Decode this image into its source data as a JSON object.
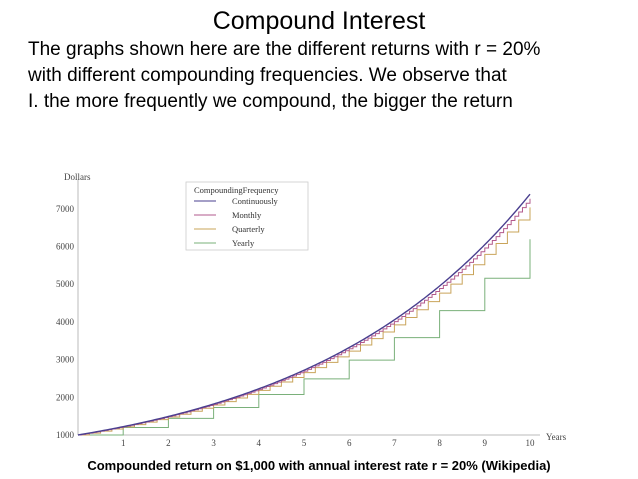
{
  "slide": {
    "title": "Compound Interest",
    "body_lines": [
      "The graphs shown here are the different returns with r = 20%",
      "with different compounding frequencies. We observe that",
      "I. the more frequently we compound, the bigger the return"
    ],
    "caption": "Compounded return on $1,000 with annual interest rate r = 20% (Wikipedia)"
  },
  "chart_data": {
    "type": "line",
    "title": "",
    "xlabel": "Years",
    "ylabel": "Dollars",
    "xlim": [
      0,
      10
    ],
    "ylim": [
      1000,
      7500
    ],
    "x_ticks": [
      1,
      2,
      3,
      4,
      5,
      6,
      7,
      8,
      9,
      10
    ],
    "y_ticks": [
      1000,
      2000,
      3000,
      4000,
      5000,
      6000,
      7000
    ],
    "grid": false,
    "legend": {
      "title": "CompoundingFrequency",
      "placement": "top-left"
    },
    "principal": 1000,
    "rate": 0.2,
    "series": [
      {
        "name": "Continuously",
        "periods_per_year": 0,
        "color": "#4a3f8f"
      },
      {
        "name": "Monthly",
        "periods_per_year": 12,
        "color": "#b25a8c"
      },
      {
        "name": "Quarterly",
        "periods_per_year": 4,
        "color": "#c9a45a"
      },
      {
        "name": "Yearly",
        "periods_per_year": 1,
        "color": "#7ab07a"
      }
    ]
  }
}
